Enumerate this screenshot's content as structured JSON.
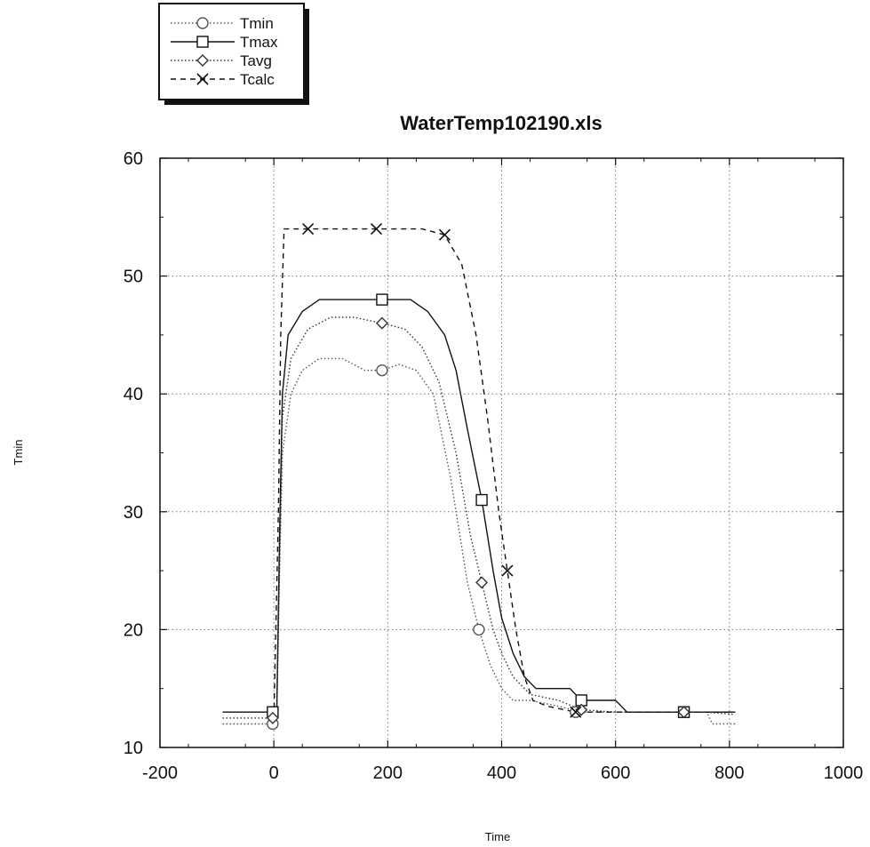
{
  "chart_data": {
    "type": "line",
    "title": "WaterTemp102190.xls",
    "xlabel": "Time",
    "ylabel": "Tmin",
    "xlim": [
      -200,
      1000
    ],
    "ylim": [
      10,
      60
    ],
    "x_ticks": [
      "-200",
      "0",
      "200",
      "400",
      "600",
      "800",
      "1000"
    ],
    "y_ticks": [
      "10",
      "20",
      "30",
      "40",
      "50",
      "60"
    ],
    "grid": true,
    "legend_position": "top-left, outside plot",
    "series": [
      {
        "name": "Tmin",
        "marker": "circle",
        "line_style": "dotted",
        "color": "#555555",
        "points": [
          [
            -90,
            12
          ],
          [
            -2,
            12
          ],
          [
            5,
            12.5
          ],
          [
            10,
            25
          ],
          [
            15,
            35
          ],
          [
            30,
            40
          ],
          [
            50,
            42
          ],
          [
            80,
            43
          ],
          [
            120,
            43
          ],
          [
            140,
            42.5
          ],
          [
            160,
            42
          ],
          [
            190,
            42
          ],
          [
            220,
            42.5
          ],
          [
            250,
            42
          ],
          [
            280,
            40
          ],
          [
            310,
            33
          ],
          [
            340,
            24
          ],
          [
            360,
            20
          ],
          [
            380,
            17
          ],
          [
            400,
            15
          ],
          [
            420,
            14
          ],
          [
            450,
            14
          ],
          [
            500,
            13.5
          ],
          [
            540,
            13
          ],
          [
            600,
            13
          ],
          [
            700,
            13
          ],
          [
            720,
            13
          ],
          [
            760,
            13
          ],
          [
            770,
            12
          ],
          [
            810,
            12
          ]
        ],
        "marker_points": [
          [
            -2,
            12
          ],
          [
            190,
            42
          ],
          [
            360,
            20
          ],
          [
            530,
            13
          ],
          [
            720,
            13
          ]
        ]
      },
      {
        "name": "Tmax",
        "marker": "square",
        "line_style": "solid",
        "color": "#111111",
        "points": [
          [
            -90,
            13
          ],
          [
            -2,
            13
          ],
          [
            5,
            13
          ],
          [
            10,
            28
          ],
          [
            15,
            40
          ],
          [
            25,
            45
          ],
          [
            50,
            47
          ],
          [
            80,
            48
          ],
          [
            120,
            48
          ],
          [
            150,
            48
          ],
          [
            190,
            48
          ],
          [
            240,
            48
          ],
          [
            270,
            47
          ],
          [
            300,
            45
          ],
          [
            320,
            42
          ],
          [
            340,
            37
          ],
          [
            365,
            31
          ],
          [
            385,
            25
          ],
          [
            400,
            21
          ],
          [
            420,
            18
          ],
          [
            440,
            16
          ],
          [
            460,
            15
          ],
          [
            500,
            15
          ],
          [
            520,
            15
          ],
          [
            540,
            14
          ],
          [
            580,
            14
          ],
          [
            600,
            14
          ],
          [
            620,
            13
          ],
          [
            700,
            13
          ],
          [
            720,
            13
          ],
          [
            760,
            13
          ],
          [
            810,
            13
          ]
        ],
        "marker_points": [
          [
            -2,
            13
          ],
          [
            190,
            48
          ],
          [
            365,
            31
          ],
          [
            540,
            14
          ],
          [
            720,
            13
          ]
        ]
      },
      {
        "name": "Tavg",
        "marker": "diamond",
        "line_style": "dotted",
        "color": "#333333",
        "points": [
          [
            -90,
            12.5
          ],
          [
            -2,
            12.5
          ],
          [
            5,
            12.7
          ],
          [
            10,
            26
          ],
          [
            15,
            38
          ],
          [
            30,
            43
          ],
          [
            60,
            45.5
          ],
          [
            100,
            46.5
          ],
          [
            140,
            46.5
          ],
          [
            190,
            46
          ],
          [
            230,
            45.5
          ],
          [
            260,
            44
          ],
          [
            290,
            41
          ],
          [
            320,
            35
          ],
          [
            345,
            28
          ],
          [
            365,
            24
          ],
          [
            385,
            20
          ],
          [
            400,
            18
          ],
          [
            420,
            16
          ],
          [
            450,
            14.5
          ],
          [
            500,
            14
          ],
          [
            540,
            13.2
          ],
          [
            600,
            13
          ],
          [
            700,
            13
          ],
          [
            720,
            13
          ],
          [
            760,
            13
          ],
          [
            810,
            12.8
          ]
        ],
        "marker_points": [
          [
            -2,
            12.5
          ],
          [
            190,
            46
          ],
          [
            365,
            24
          ],
          [
            540,
            13.2
          ],
          [
            720,
            13
          ]
        ]
      },
      {
        "name": "Tcalc",
        "marker": "x",
        "line_style": "dashed",
        "color": "#111111",
        "points": [
          [
            0,
            12.5
          ],
          [
            8,
            30
          ],
          [
            12,
            45
          ],
          [
            18,
            54
          ],
          [
            60,
            54
          ],
          [
            180,
            54
          ],
          [
            260,
            54
          ],
          [
            300,
            53.5
          ],
          [
            330,
            51
          ],
          [
            355,
            45
          ],
          [
            375,
            38
          ],
          [
            395,
            30
          ],
          [
            410,
            25
          ],
          [
            425,
            20
          ],
          [
            440,
            16
          ],
          [
            455,
            14
          ],
          [
            480,
            13.5
          ],
          [
            500,
            13.3
          ],
          [
            530,
            13
          ],
          [
            560,
            13
          ],
          [
            600,
            13
          ],
          [
            700,
            13
          ],
          [
            810,
            13
          ]
        ],
        "marker_points": [
          [
            60,
            54
          ],
          [
            180,
            54
          ],
          [
            300,
            53.5
          ],
          [
            410,
            25
          ],
          [
            530,
            13
          ]
        ]
      }
    ]
  }
}
